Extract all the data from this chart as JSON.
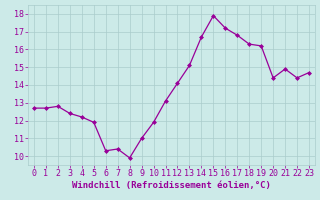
{
  "x": [
    0,
    1,
    2,
    3,
    4,
    5,
    6,
    7,
    8,
    9,
    10,
    11,
    12,
    13,
    14,
    15,
    16,
    17,
    18,
    19,
    20,
    21,
    22,
    23
  ],
  "y": [
    12.7,
    12.7,
    12.8,
    12.4,
    12.2,
    11.9,
    10.3,
    10.4,
    9.9,
    11.0,
    11.9,
    13.1,
    14.1,
    15.1,
    16.7,
    17.9,
    17.2,
    16.8,
    16.3,
    16.2,
    14.4,
    14.9,
    14.4,
    14.7
  ],
  "line_color": "#990099",
  "marker": "D",
  "marker_size": 2.0,
  "bg_color": "#cceae8",
  "grid_color": "#aacccc",
  "xlabel": "Windchill (Refroidissement éolien,°C)",
  "xlabel_color": "#990099",
  "tick_color": "#990099",
  "ylim": [
    9.5,
    18.5
  ],
  "xlim": [
    -0.5,
    23.5
  ],
  "yticks": [
    10,
    11,
    12,
    13,
    14,
    15,
    16,
    17,
    18
  ],
  "xticks": [
    0,
    1,
    2,
    3,
    4,
    5,
    6,
    7,
    8,
    9,
    10,
    11,
    12,
    13,
    14,
    15,
    16,
    17,
    18,
    19,
    20,
    21,
    22,
    23
  ],
  "xlabel_fontsize": 6.5,
  "tick_fontsize": 6.0,
  "linewidth": 0.9
}
